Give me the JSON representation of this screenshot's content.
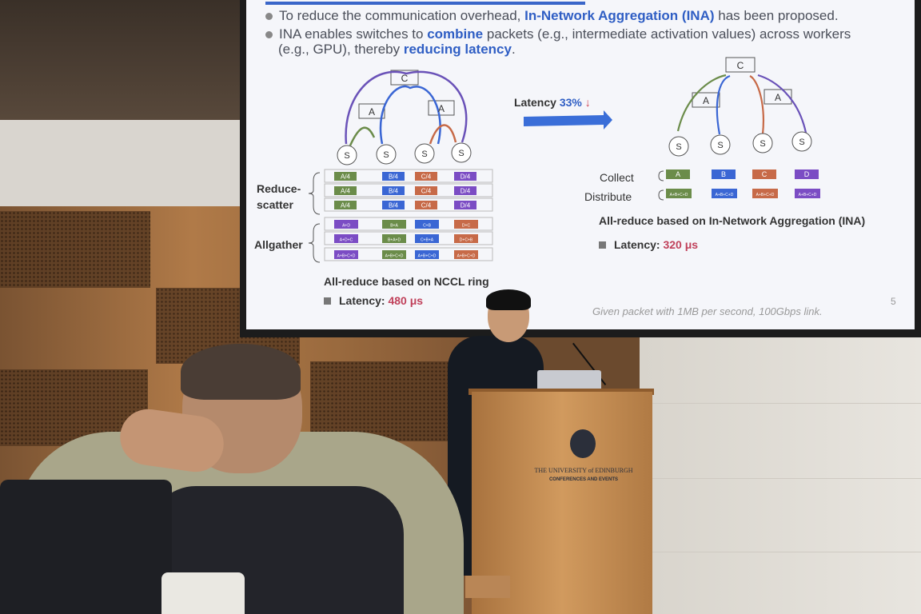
{
  "slide": {
    "bullet_1_prefix": "To reduce the communication overhead,",
    "bullet_1_bold": "In-Network Aggregation (INA)",
    "bullet_1_suffix": "has been proposed.",
    "bullet_2_prefix": "INA enables switches to",
    "bullet_2_bold_1": "combine",
    "bullet_2_mid": "packets (e.g., intermediate activation values) across workers",
    "bullet_2_line2_prefix": "(e.g., GPU), thereby",
    "bullet_2_bold_2": "reducing latency",
    "bullet_2_end": ".",
    "left_diagram": {
      "reduce_scatter_label_1": "Reduce-",
      "reduce_scatter_label_2": "scatter",
      "allgather_label": "Allgather",
      "caption": "All-reduce based on NCCL ring",
      "latency_label": "Latency:",
      "latency_value": "480 μs",
      "nodes": {
        "core": "C",
        "agg": "A",
        "server": "S"
      },
      "reduce_scatter_blocks": [
        "A/4",
        "B/4",
        "C/4",
        "D/4"
      ],
      "allgather_rows": [
        [
          "A+D",
          "B+A",
          "C+B",
          "D+C"
        ],
        [
          "A+D+C",
          "B+A+D",
          "C+B+A",
          "D+C+B"
        ],
        [
          "A+B+C+D",
          "A+B+C+D",
          "A+B+C+D",
          "A+B+C+D"
        ]
      ]
    },
    "middle": {
      "latency_label": "Latency",
      "latency_value": "33%",
      "arrow_glyph": "↓"
    },
    "right_diagram": {
      "collect_label": "Collect",
      "distribute_label": "Distribute",
      "collect_blocks": [
        "A",
        "B",
        "C",
        "D"
      ],
      "distribute_blocks": [
        "A+B+C+D",
        "A+B+C+D",
        "A+B+C+D",
        "A+B+C+D"
      ],
      "caption": "All-reduce based on In-Network Aggregation (INA)",
      "latency_label": "Latency:",
      "latency_value": "320 μs"
    },
    "footnote": "Given packet with 1MB per second, 100Gbps link.",
    "page_number": "5",
    "colors": {
      "A": "#6b8c4a",
      "B": "#3a66d4",
      "C": "#c76a48",
      "D": "#7b4cc4",
      "accent": "#2f5ec4",
      "latency_value": "#c0405a"
    }
  },
  "podium": {
    "line_1": "THE UNIVERSITY of EDINBURGH",
    "line_2": "CONFERENCES AND EVENTS"
  }
}
